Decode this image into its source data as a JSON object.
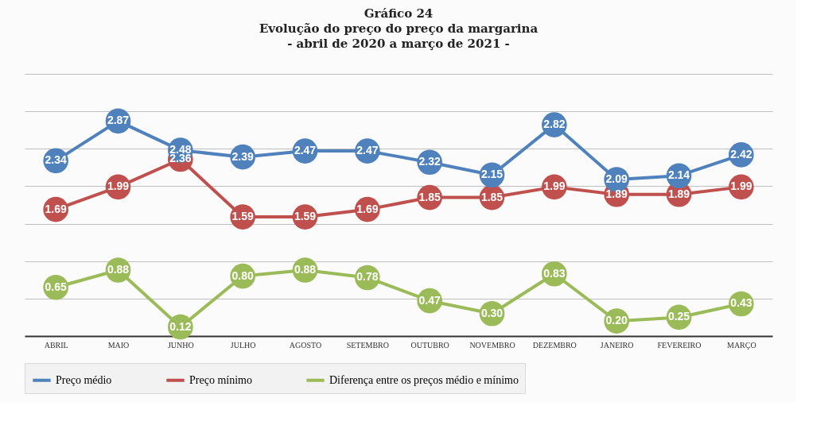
{
  "chart_data": {
    "type": "line",
    "title": "Gráfico 24\nEvolução do preço do preço da margarina\n- abril de 2020 a março de 2021 -",
    "categories": [
      "ABRIL",
      "MAIO",
      "JUNHO",
      "JULHO",
      "AGOSTO",
      "SETEMBRO",
      "OUTUBRO",
      "NOVEMBRO",
      "DEZEMBRO",
      "JANEIRO",
      "FEVEREIRO",
      "MARÇO"
    ],
    "series": [
      {
        "name": "Preço médio",
        "color": "#4f81bd",
        "values": [
          2.34,
          2.87,
          2.48,
          2.39,
          2.47,
          2.47,
          2.32,
          2.15,
          2.82,
          2.09,
          2.14,
          2.42
        ],
        "value_labels": [
          "2.34",
          "2.87",
          "2.48",
          "2.39",
          "2.47",
          "2.47",
          "2.32",
          "2.15",
          "2.82",
          "2.09",
          "2.14",
          "2.42"
        ]
      },
      {
        "name": "Preço mínimo",
        "color": "#c0504d",
        "values": [
          1.69,
          1.99,
          2.36,
          1.59,
          1.59,
          1.69,
          1.85,
          1.85,
          1.99,
          1.89,
          1.89,
          1.99
        ],
        "value_labels": [
          "1.69",
          "1.99",
          "2.36",
          "1.59",
          "1.59",
          "1.69",
          "1.85",
          "1.85",
          "1.99",
          "1.89",
          "1.89",
          "1.99"
        ]
      },
      {
        "name": "Diferença entre os preços médio e mínimo",
        "color": "#9bbb59",
        "values": [
          0.65,
          0.88,
          0.12,
          0.8,
          0.88,
          0.78,
          0.47,
          0.3,
          0.83,
          0.2,
          0.25,
          0.43
        ],
        "value_labels": [
          "0.65",
          "0.88",
          "0.12",
          "0.80",
          "0.88",
          "0.78",
          "0.47",
          "0.30",
          "0.83",
          "0.20",
          "0.25",
          "0.43"
        ]
      }
    ],
    "ylim": [
      0,
      3.5
    ],
    "yticks": [
      {
        "value": 0,
        "label": null
      },
      {
        "value": 0.5,
        "label": null
      },
      {
        "value": 1,
        "label": null
      },
      {
        "value": 1.5,
        "label": null
      },
      {
        "value": 2,
        "label": null
      },
      {
        "value": 2.5,
        "label": null
      },
      {
        "value": 3,
        "label": null
      },
      {
        "value": 3.5,
        "label": null
      }
    ],
    "tick_labels": "x",
    "grid": "y",
    "legend": "bottom",
    "marker": "circle",
    "line_style": "solid"
  }
}
